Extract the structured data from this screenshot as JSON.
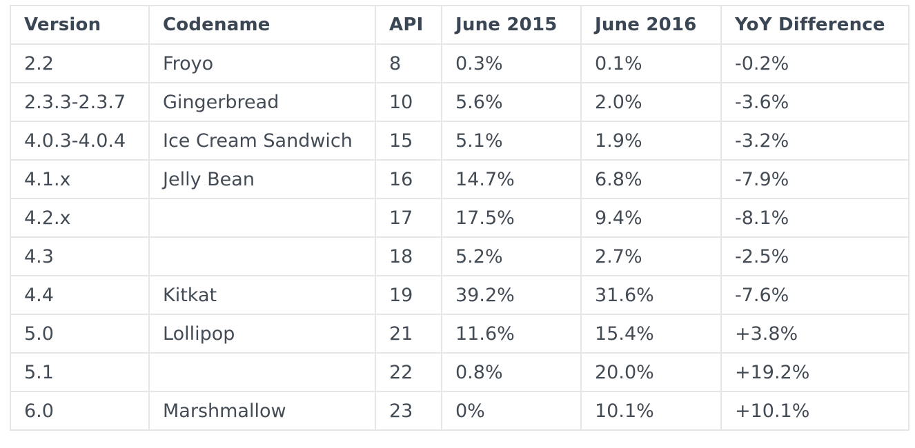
{
  "table": {
    "headers": [
      "Version",
      "Codename",
      "API",
      "June 2015",
      "June 2016",
      "YoY Difference"
    ],
    "rows": [
      {
        "version": "2.2",
        "codename": "Froyo",
        "api": "8",
        "june_2015": "0.3%",
        "june_2016": "0.1%",
        "yoy": "-0.2%"
      },
      {
        "version": "2.3.3-2.3.7",
        "codename": "Gingerbread",
        "api": "10",
        "june_2015": "5.6%",
        "june_2016": "2.0%",
        "yoy": "-3.6%"
      },
      {
        "version": "4.0.3-4.0.4",
        "codename": "Ice Cream Sandwich",
        "api": "15",
        "june_2015": "5.1%",
        "june_2016": "1.9%",
        "yoy": "-3.2%"
      },
      {
        "version": "4.1.x",
        "codename": "Jelly Bean",
        "api": "16",
        "june_2015": "14.7%",
        "june_2016": "6.8%",
        "yoy": "-7.9%"
      },
      {
        "version": "4.2.x",
        "codename": "",
        "api": "17",
        "june_2015": "17.5%",
        "june_2016": "9.4%",
        "yoy": "-8.1%"
      },
      {
        "version": "4.3",
        "codename": "",
        "api": "18",
        "june_2015": "5.2%",
        "june_2016": "2.7%",
        "yoy": "-2.5%"
      },
      {
        "version": "4.4",
        "codename": "Kitkat",
        "api": "19",
        "june_2015": "39.2%",
        "june_2016": "31.6%",
        "yoy": "-7.6%"
      },
      {
        "version": "5.0",
        "codename": "Lollipop",
        "api": "21",
        "june_2015": "11.6%",
        "june_2016": "15.4%",
        "yoy": "+3.8%"
      },
      {
        "version": "5.1",
        "codename": "",
        "api": "22",
        "june_2015": "0.8%",
        "june_2016": "20.0%",
        "yoy": "+19.2%"
      },
      {
        "version": "6.0",
        "codename": "Marshmallow",
        "api": "23",
        "june_2015": "0%",
        "june_2016": "10.1%",
        "yoy": "+10.1%"
      }
    ]
  }
}
